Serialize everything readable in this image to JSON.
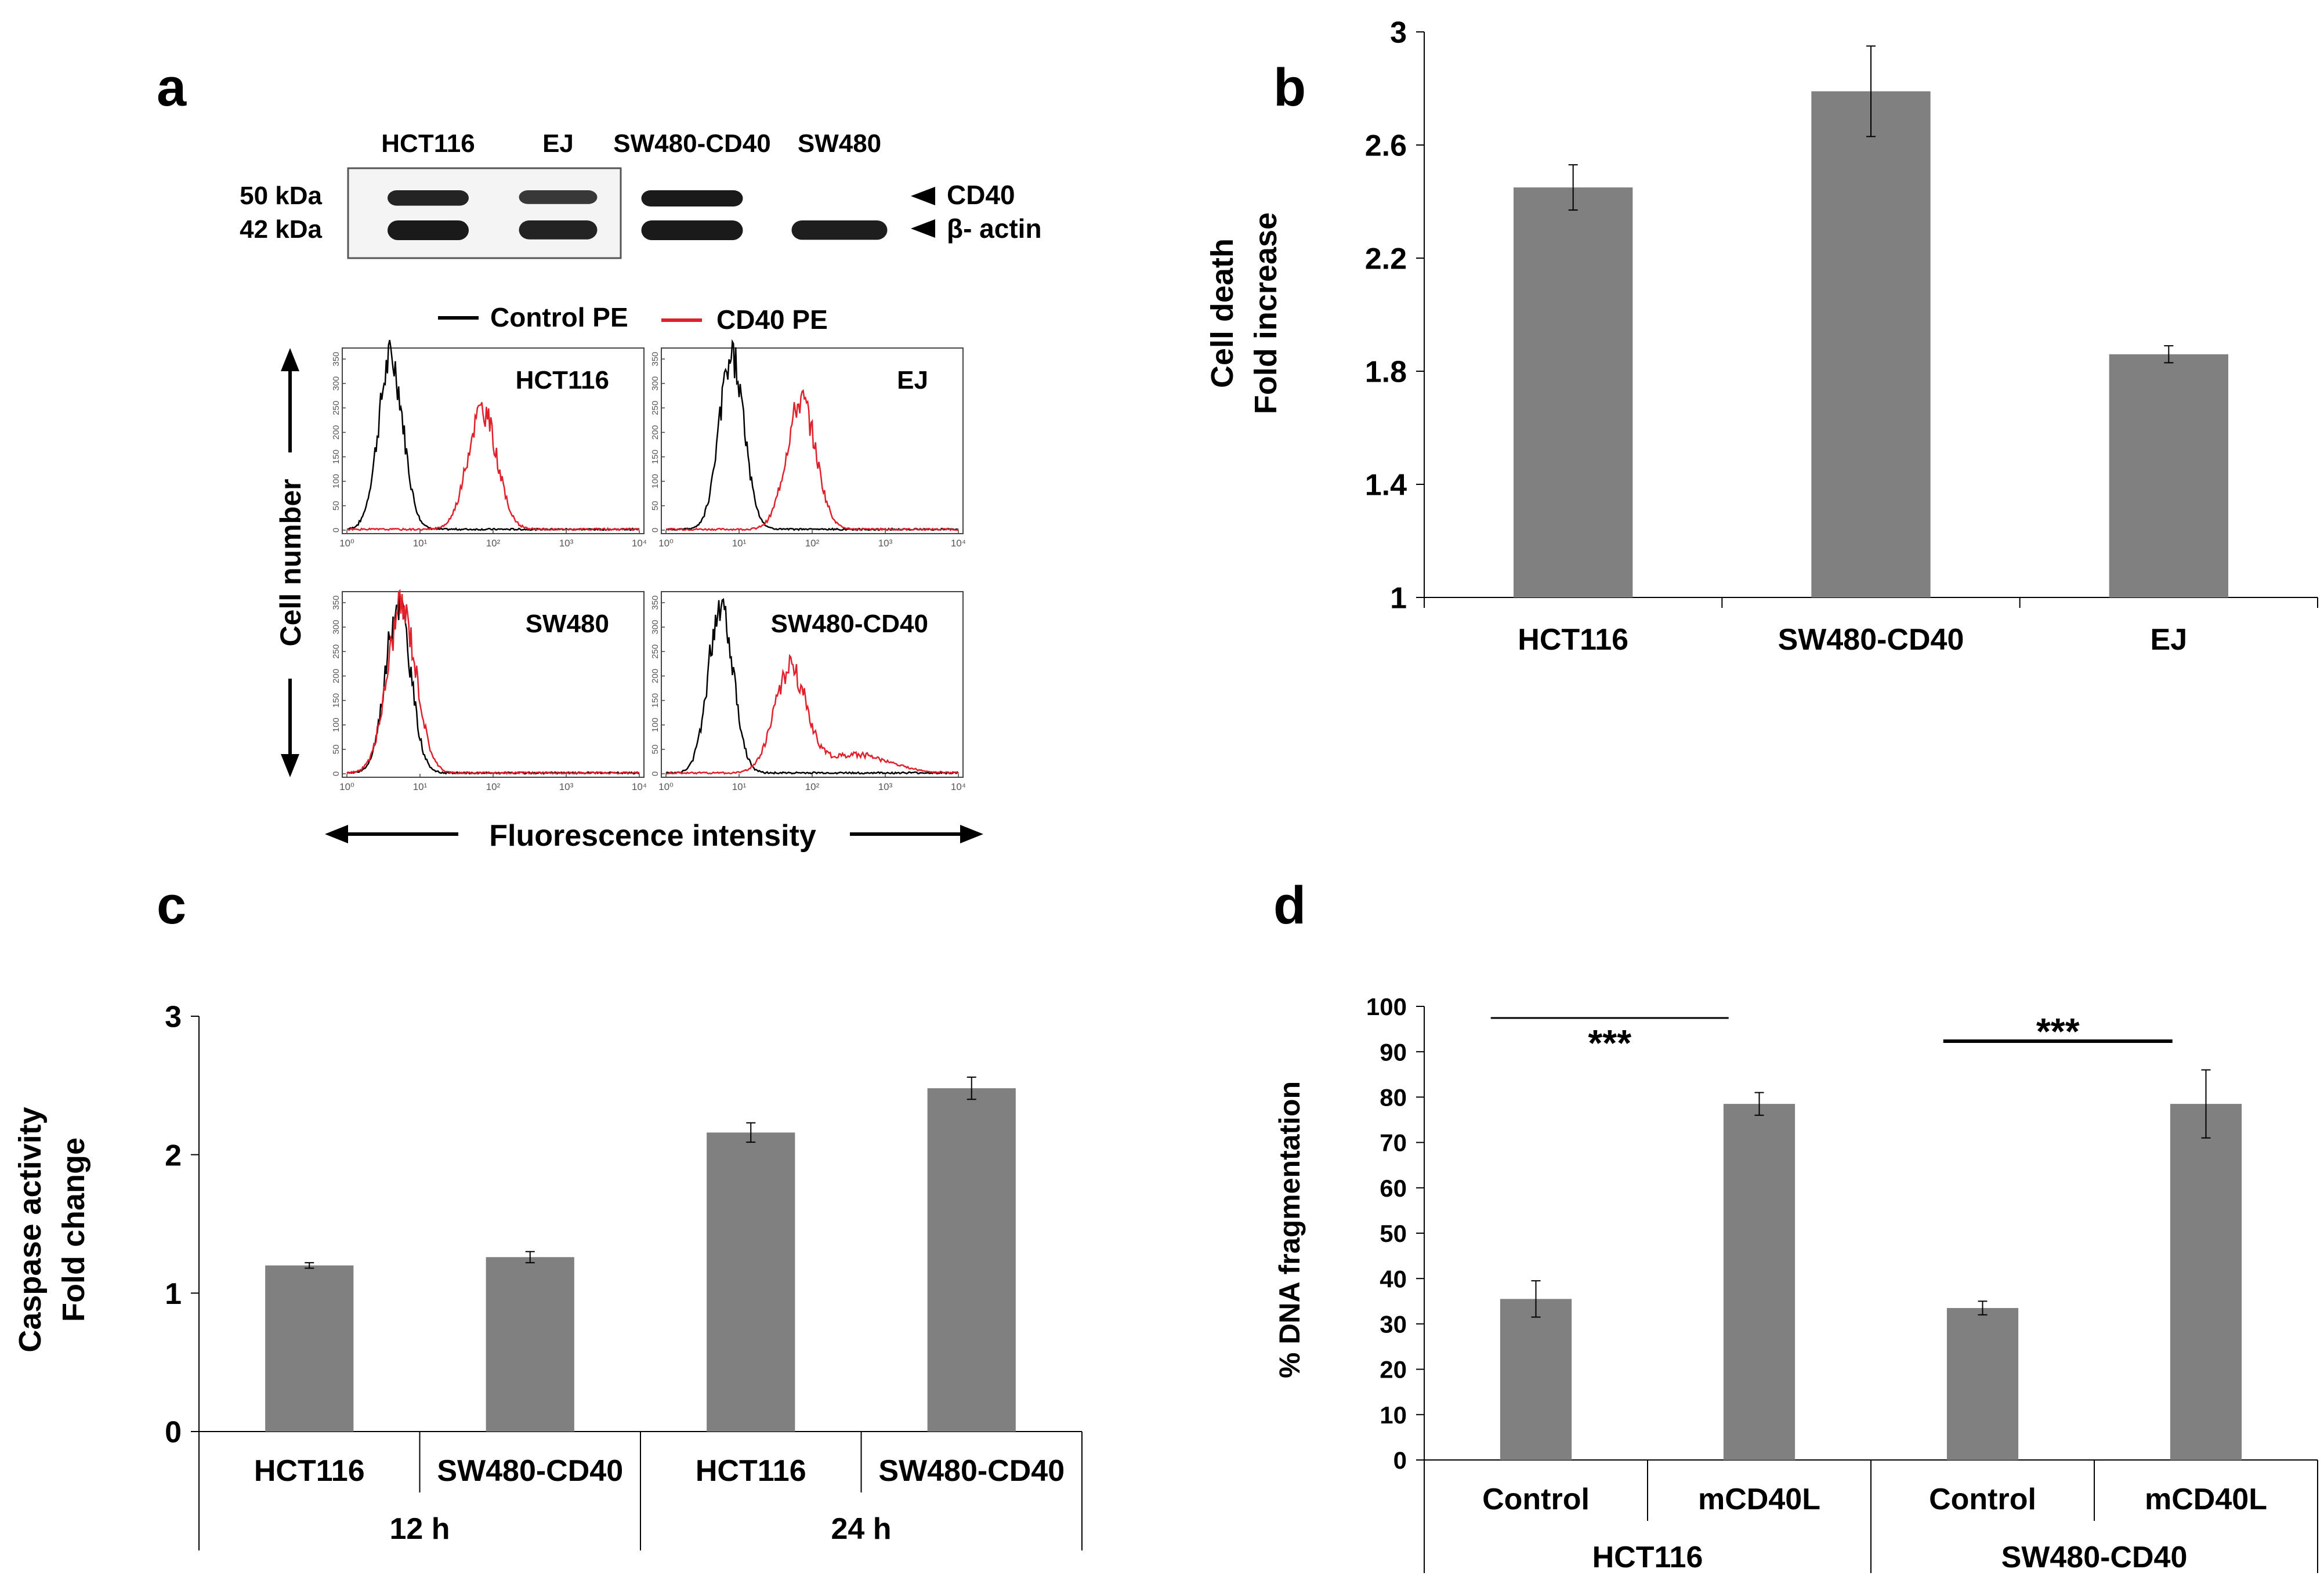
{
  "panel_labels": {
    "a": "a",
    "b": "b",
    "c": "c",
    "d": "d"
  },
  "colors": {
    "bar": "#808080",
    "axis": "#000000",
    "control_curve": "#000000",
    "cd40_curve": "#e0202a",
    "blot_band": "#1a1a1a",
    "blot_bg": "#f4f4f4"
  },
  "panel_a": {
    "lanes": [
      "HCT116",
      "EJ",
      "SW480-CD40",
      "SW480"
    ],
    "markers": {
      "upper": "50 kDa",
      "lower": "42 kDa"
    },
    "band_labels": {
      "upper": "CD40",
      "lower": "β- actin"
    },
    "cd40_band_intensity": [
      0.9,
      0.7,
      1.0,
      0.0
    ],
    "actin_band_intensity": [
      1.0,
      0.9,
      1.0,
      0.95
    ],
    "legend": {
      "control": "Control PE",
      "cd40": "CD40 PE"
    },
    "histograms": [
      {
        "label": "HCT116",
        "control_peak_log": 0.6,
        "cd40_peak_log": 1.85,
        "cd40_height": 0.7,
        "cd40_tail": 0
      },
      {
        "label": "EJ",
        "control_peak_log": 0.9,
        "cd40_peak_log": 1.85,
        "cd40_height": 0.75,
        "cd40_tail": 0
      },
      {
        "label": "SW480",
        "control_peak_log": 0.7,
        "cd40_peak_log": 0.75,
        "cd40_height": 0.97,
        "cd40_tail": 0
      },
      {
        "label": "SW480-CD40",
        "control_peak_log": 0.75,
        "cd40_peak_log": 1.7,
        "cd40_height": 0.6,
        "cd40_tail": 1
      }
    ],
    "ytick_labels": [
      "0",
      "50",
      "100",
      "150",
      "200",
      "250",
      "300",
      "350"
    ],
    "xtick_labels": [
      "10⁰",
      "10¹",
      "10²",
      "10³",
      "10⁴"
    ],
    "ylabel": "Cell number",
    "xlabel": "Fluorescence intensity"
  },
  "chart_data": [
    {
      "panel": "b",
      "type": "bar",
      "categories": [
        "HCT116",
        "SW480-CD40",
        "EJ"
      ],
      "values": [
        2.45,
        2.79,
        1.86
      ],
      "errors": [
        0.08,
        0.16,
        0.03
      ],
      "ylabel": [
        "Cell death",
        "Fold increase"
      ],
      "ylim": [
        1,
        3
      ],
      "ytick_labels": [
        "1",
        "1.4",
        "1.8",
        "2.2",
        "2.6",
        "3"
      ]
    },
    {
      "panel": "c",
      "type": "bar",
      "categories": [
        "HCT116",
        "SW480-CD40",
        "HCT116",
        "SW480-CD40"
      ],
      "groups": [
        "12 h",
        "24 h"
      ],
      "values": [
        1.2,
        1.26,
        2.16,
        2.48
      ],
      "errors": [
        0.02,
        0.04,
        0.07,
        0.08
      ],
      "ylabel": [
        "Caspase activity",
        "Fold change"
      ],
      "ylim": [
        0,
        3
      ],
      "ytick_labels": [
        "0",
        "1",
        "2",
        "3"
      ]
    },
    {
      "panel": "d",
      "type": "bar",
      "categories": [
        "Control",
        "mCD40L",
        "Control",
        "mCD40L"
      ],
      "groups": [
        "HCT116",
        "SW480-CD40"
      ],
      "values": [
        35.5,
        78.5,
        33.5,
        78.5
      ],
      "errors": [
        4,
        2.5,
        1.5,
        7.5
      ],
      "ylabel": "% DNA fragmentation",
      "ylim": [
        0,
        100
      ],
      "ytick_labels": [
        "0",
        "10",
        "20",
        "30",
        "40",
        "50",
        "60",
        "70",
        "80",
        "90",
        "100"
      ],
      "significance": [
        "***",
        "***"
      ]
    }
  ]
}
